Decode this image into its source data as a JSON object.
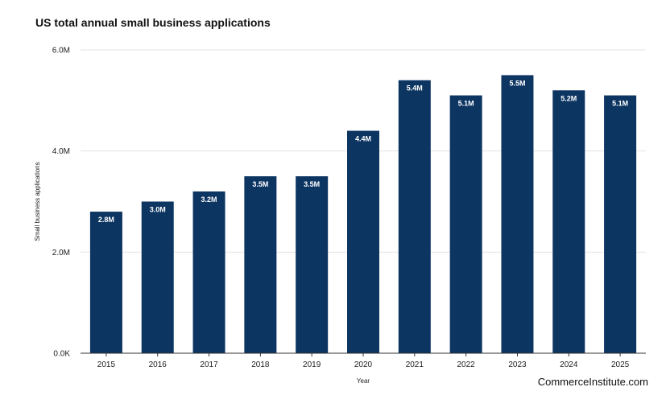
{
  "chart_data": {
    "type": "bar",
    "title": "US total annual small business applications",
    "xlabel": "Year",
    "ylabel": "Small business applications",
    "categories": [
      "2015",
      "2016",
      "2017",
      "2018",
      "2019",
      "2020",
      "2021",
      "2022",
      "2023",
      "2024",
      "2025"
    ],
    "values": [
      2.8,
      3.0,
      3.2,
      3.5,
      3.5,
      4.4,
      5.4,
      5.1,
      5.5,
      5.2,
      5.1
    ],
    "value_unit": "millions",
    "data_labels": [
      "2.8M",
      "3.0M",
      "3.2M",
      "3.5M",
      "3.5M",
      "4.4M",
      "5.4M",
      "5.1M",
      "5.5M",
      "5.2M",
      "5.1M"
    ],
    "ylim": [
      0,
      6
    ],
    "yticks": [
      {
        "value": 0,
        "label": "0.0K"
      },
      {
        "value": 2,
        "label": "2.0M"
      },
      {
        "value": 4,
        "label": "4.0M"
      },
      {
        "value": 6,
        "label": "6.0M"
      }
    ],
    "grid": true,
    "bar_color": "#0d3562",
    "legend": "none"
  },
  "source": "CommerceInstitute.com"
}
